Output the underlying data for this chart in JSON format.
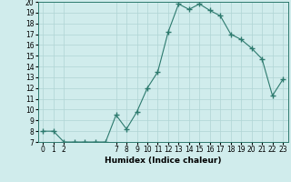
{
  "x": [
    0,
    1,
    2,
    3,
    4,
    5,
    6,
    7,
    8,
    9,
    10,
    11,
    12,
    13,
    14,
    15,
    16,
    17,
    18,
    19,
    20,
    21,
    22,
    23
  ],
  "y": [
    8,
    8,
    7,
    7,
    7,
    7,
    7,
    9.5,
    8.2,
    9.8,
    12,
    13.5,
    17.2,
    19.8,
    19.3,
    19.8,
    19.2,
    18.7,
    17,
    16.5,
    15.7,
    14.7,
    11.3,
    12.8
  ],
  "line_color": "#2d7a6e",
  "bg_color": "#d0ecec",
  "grid_color": "#b0d4d4",
  "xlabel": "Humidex (Indice chaleur)",
  "ylim": [
    7,
    20
  ],
  "xlim": [
    -0.5,
    23.5
  ],
  "yticks": [
    7,
    8,
    9,
    10,
    11,
    12,
    13,
    14,
    15,
    16,
    17,
    18,
    19,
    20
  ],
  "xticks": [
    0,
    1,
    2,
    7,
    8,
    9,
    10,
    11,
    12,
    13,
    14,
    15,
    16,
    17,
    18,
    19,
    20,
    21,
    22,
    23
  ],
  "xtick_labels": [
    "0",
    "1",
    "2",
    "7",
    "8",
    "9",
    "10",
    "11",
    "12",
    "13",
    "14",
    "15",
    "16",
    "17",
    "18",
    "19",
    "20",
    "21",
    "22",
    "23"
  ],
  "marker": "+",
  "markersize": 4,
  "linewidth": 0.8,
  "axis_fontsize": 5.5,
  "xlabel_fontsize": 6.5
}
